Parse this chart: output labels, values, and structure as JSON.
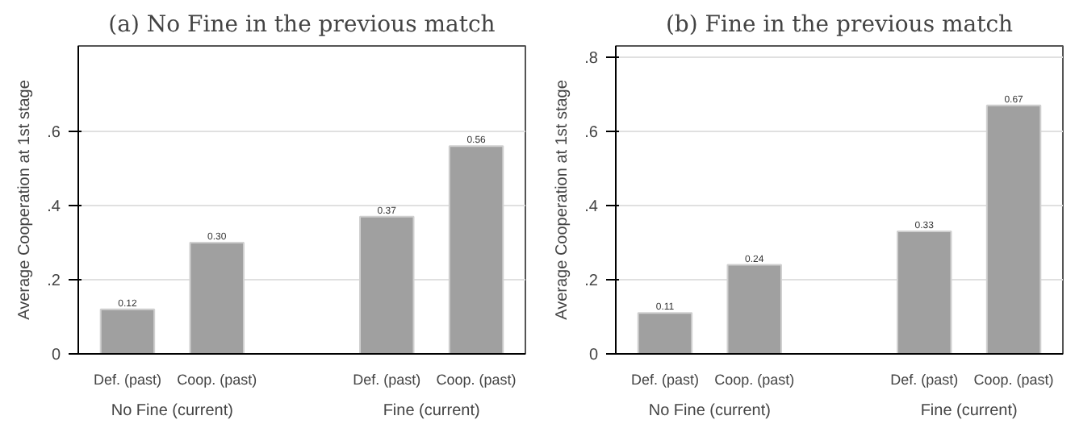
{
  "chart_data": [
    {
      "type": "bar",
      "title": "(a) No Fine in the previous match",
      "ylabel": "Average Cooperation at 1st stage",
      "categories": [
        "Def. (past)",
        "Coop. (past)",
        "Def. (past)",
        "Coop. (past)"
      ],
      "values": [
        0.12,
        0.3,
        0.37,
        0.56
      ],
      "value_labels": [
        "0.12",
        "0.30",
        "0.37",
        "0.56"
      ],
      "color": "#a0a0a0",
      "ylim": [
        0,
        0.83
      ],
      "yticks": [
        {
          "value": 0,
          "label": "0"
        },
        {
          "value": 0.2,
          "label": ".2"
        },
        {
          "value": 0.4,
          "label": ".4"
        },
        {
          "value": 0.6,
          "label": ".6"
        }
      ],
      "grid": "y",
      "annotations": [
        "No Fine (current)",
        "Fine (current)"
      ]
    },
    {
      "type": "bar",
      "title": "(b) Fine in the previous match",
      "ylabel": "Average Cooperation at 1st stage",
      "categories": [
        "Def. (past)",
        "Coop. (past)",
        "Def. (past)",
        "Coop. (past)"
      ],
      "values": [
        0.11,
        0.24,
        0.33,
        0.67
      ],
      "value_labels": [
        "0.11",
        "0.24",
        "0.33",
        "0.67"
      ],
      "color": "#a0a0a0",
      "ylim": [
        0,
        0.83
      ],
      "yticks": [
        {
          "value": 0,
          "label": "0"
        },
        {
          "value": 0.2,
          "label": ".2"
        },
        {
          "value": 0.4,
          "label": ".4"
        },
        {
          "value": 0.6,
          "label": ".6"
        },
        {
          "value": 0.8,
          "label": ".8"
        }
      ],
      "grid": "y",
      "annotations": [
        "No Fine (current)",
        "Fine (current)"
      ]
    }
  ]
}
